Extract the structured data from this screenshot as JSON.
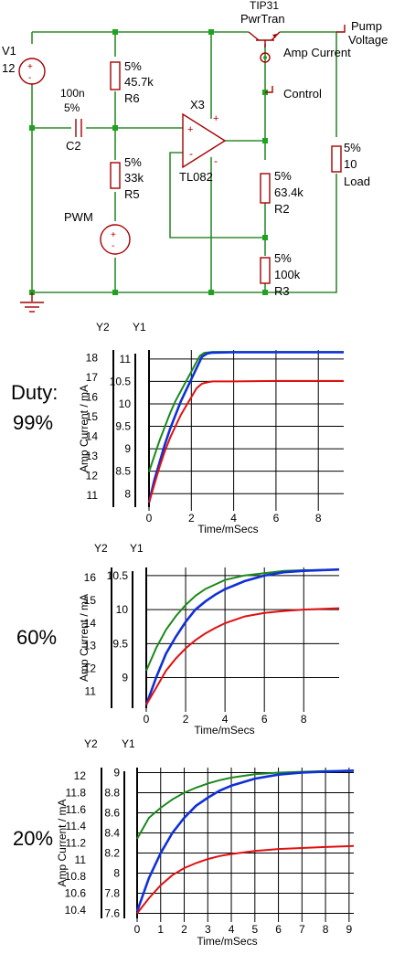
{
  "schematic": {
    "v1": {
      "name": "V1",
      "value": "12"
    },
    "transistor": {
      "model": "TIP31",
      "name": "PwrTran"
    },
    "pump_voltage": {
      "line1": "Pump",
      "line2": "Voltage"
    },
    "amp_current_probe": "Amp Current",
    "control_probe": "Control",
    "c2": {
      "value": "100n",
      "tol": "5%",
      "name": "C2"
    },
    "r6": {
      "tol": "5%",
      "value": "45.7k",
      "name": "R6"
    },
    "r5": {
      "tol": "5%",
      "value": "33k",
      "name": "R5"
    },
    "x3": {
      "name": "X3",
      "model": "TL082"
    },
    "pwm": "PWM",
    "r2": {
      "tol": "5%",
      "value": "63.4k",
      "name": "R2"
    },
    "r3": {
      "tol": "5%",
      "value": "100k",
      "name": "R3"
    },
    "load": {
      "tol": "5%",
      "value": "10",
      "name": "Load"
    }
  },
  "duty_label": "Duty:",
  "colors": {
    "wire": "#2e8b2e",
    "component": "#a50000",
    "green": "#1a8a1a",
    "blue": "#1030d8",
    "red": "#e01010"
  },
  "chart_data": [
    {
      "type": "line",
      "duty": "99%",
      "y2_label": "Y2",
      "y1_label": "Y1",
      "xlabel": "Time/mSecs",
      "ylabel": "Amp Current / mA",
      "xlim": [
        0,
        9.2
      ],
      "x_ticks": [
        "0",
        "2",
        "4",
        "6",
        "8"
      ],
      "y1_ticks": [
        "8",
        "8.5",
        "9",
        "9.5",
        "10",
        "10.5",
        "11"
      ],
      "y2_ticks": [
        "11",
        "12",
        "13",
        "14",
        "15",
        "16",
        "17",
        "18"
      ],
      "y1_lim": [
        7.7,
        11.2
      ],
      "y2_lim": [
        10.4,
        18.4
      ],
      "series": [
        {
          "color": "green",
          "axis": "Y2",
          "x": [
            0,
            0.25,
            0.5,
            0.75,
            1.0,
            1.25,
            1.5,
            1.75,
            2.0,
            2.25,
            2.4,
            2.6,
            3,
            4,
            6,
            9.2
          ],
          "y": [
            12.2,
            13.0,
            13.8,
            14.5,
            15.2,
            15.8,
            16.3,
            16.8,
            17.3,
            17.8,
            18.1,
            18.25,
            18.3,
            18.3,
            18.3,
            18.3
          ]
        },
        {
          "color": "blue",
          "axis": "Y1",
          "x": [
            0,
            0.25,
            0.5,
            0.75,
            1.0,
            1.25,
            1.5,
            1.75,
            2.0,
            2.25,
            2.5,
            2.75,
            3,
            4,
            6,
            9.2
          ],
          "y": [
            7.8,
            8.3,
            8.7,
            9.1,
            9.45,
            9.75,
            10.05,
            10.3,
            10.55,
            10.8,
            11.05,
            11.12,
            11.14,
            11.15,
            11.15,
            11.15
          ]
        },
        {
          "color": "red",
          "axis": "Y1",
          "x": [
            0,
            0.25,
            0.5,
            0.75,
            1.0,
            1.25,
            1.5,
            1.75,
            2.0,
            2.25,
            2.5,
            2.75,
            3,
            4,
            6,
            9.2
          ],
          "y": [
            7.8,
            8.2,
            8.6,
            8.95,
            9.25,
            9.5,
            9.75,
            9.95,
            10.15,
            10.35,
            10.45,
            10.48,
            10.5,
            10.5,
            10.51,
            10.51
          ]
        }
      ]
    },
    {
      "type": "line",
      "duty": "60%",
      "y2_label": "Y2",
      "y1_label": "Y1",
      "xlabel": "Time/mSecs",
      "ylabel": "Amp Current / mA",
      "xlim": [
        0,
        9.8
      ],
      "x_ticks": [
        "0",
        "2",
        "4",
        "6",
        "8"
      ],
      "y1_ticks": [
        "9",
        "9.5",
        "10",
        "10.5"
      ],
      "y2_ticks": [
        "11",
        "12",
        "13",
        "14",
        "15",
        "16"
      ],
      "y1_lim": [
        8.55,
        10.62
      ],
      "y2_lim": [
        10.25,
        16.45
      ],
      "series": [
        {
          "color": "green",
          "axis": "Y2",
          "x": [
            0,
            0.5,
            1,
            1.5,
            2,
            2.5,
            3,
            3.5,
            4,
            5,
            6,
            7,
            8,
            9.8
          ],
          "y": [
            11.9,
            12.9,
            13.7,
            14.3,
            14.8,
            15.2,
            15.5,
            15.7,
            15.9,
            16.1,
            16.2,
            16.3,
            16.33,
            16.35
          ]
        },
        {
          "color": "blue",
          "axis": "Y1",
          "x": [
            0,
            0.5,
            1,
            1.5,
            2,
            2.5,
            3,
            3.5,
            4,
            5,
            6,
            7,
            8,
            9.8
          ],
          "y": [
            8.6,
            9.0,
            9.35,
            9.6,
            9.82,
            10.0,
            10.12,
            10.22,
            10.3,
            10.42,
            10.5,
            10.55,
            10.57,
            10.59
          ]
        },
        {
          "color": "red",
          "axis": "Y1",
          "x": [
            0,
            0.5,
            1,
            1.5,
            2,
            2.5,
            3,
            3.5,
            4,
            5,
            6,
            7,
            8,
            9.8
          ],
          "y": [
            8.6,
            8.85,
            9.1,
            9.28,
            9.43,
            9.55,
            9.65,
            9.73,
            9.8,
            9.9,
            9.95,
            9.98,
            10.0,
            10.02
          ]
        }
      ]
    },
    {
      "type": "line",
      "duty": "20%",
      "y2_label": "Y2",
      "y1_label": "Y1",
      "xlabel": "Time/mSecs",
      "ylabel": "Amp Current / mA",
      "xlim": [
        0,
        9.2
      ],
      "x_ticks": [
        "0",
        "1",
        "2",
        "3",
        "4",
        "5",
        "6",
        "7",
        "8",
        "9"
      ],
      "y1_ticks": [
        "7.6",
        "7.8",
        "8",
        "8.2",
        "8.4",
        "8.6",
        "8.8",
        "9"
      ],
      "y2_ticks": [
        "10.4",
        "10.6",
        "10.8",
        "11",
        "11.2",
        "11.4",
        "11.6",
        "11.8",
        "12"
      ],
      "y1_lim": [
        7.55,
        9.05
      ],
      "y2_lim": [
        10.3,
        12.1
      ],
      "series": [
        {
          "color": "green",
          "axis": "Y2",
          "x": [
            0,
            0.5,
            1,
            1.5,
            2,
            2.5,
            3,
            3.5,
            4,
            5,
            6,
            7,
            8,
            9.2
          ],
          "y": [
            11.25,
            11.5,
            11.62,
            11.72,
            11.8,
            11.86,
            11.91,
            11.95,
            11.98,
            12.02,
            12.04,
            12.05,
            12.06,
            12.06
          ]
        },
        {
          "color": "blue",
          "axis": "Y1",
          "x": [
            0,
            0.5,
            1,
            1.5,
            2,
            2.5,
            3,
            3.5,
            4,
            5,
            6,
            7,
            8,
            9.2
          ],
          "y": [
            7.62,
            7.95,
            8.2,
            8.4,
            8.55,
            8.67,
            8.75,
            8.82,
            8.87,
            8.94,
            8.98,
            9.0,
            9.01,
            9.02
          ]
        },
        {
          "color": "red",
          "axis": "Y1",
          "x": [
            0,
            0.5,
            1,
            1.5,
            2,
            2.5,
            3,
            3.5,
            4,
            5,
            6,
            7,
            8,
            9.2
          ],
          "y": [
            7.6,
            7.75,
            7.88,
            7.98,
            8.05,
            8.1,
            8.14,
            8.17,
            8.19,
            8.22,
            8.24,
            8.25,
            8.26,
            8.27
          ]
        }
      ]
    }
  ]
}
